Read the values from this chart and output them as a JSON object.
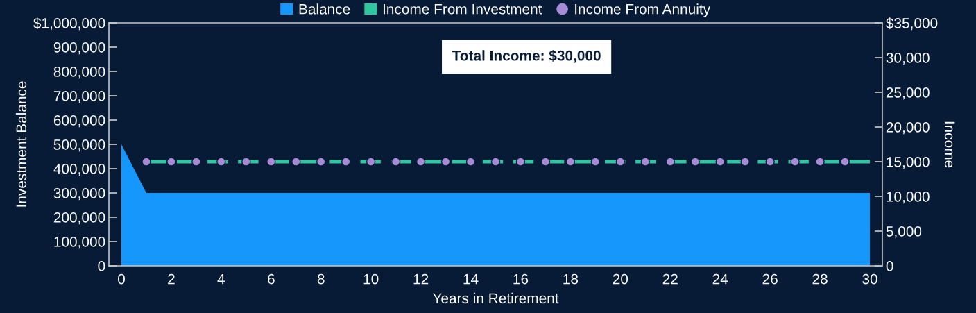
{
  "chart_data": {
    "type": "area",
    "xlabel": "Years in Retirement",
    "ylabel": "Investment Balance",
    "y2label": "Income",
    "annotations": [
      "Total Income: $30,000"
    ],
    "xlim": [
      -0.5,
      30.5
    ],
    "xticks": [
      0,
      2,
      4,
      6,
      8,
      10,
      12,
      14,
      16,
      18,
      20,
      22,
      24,
      26,
      28,
      30
    ],
    "ylim": [
      0,
      1000000
    ],
    "yticks": [
      0,
      {
        "value": 100000,
        "label": "100,000"
      },
      {
        "value": 200000,
        "label": "200,000"
      },
      {
        "value": 300000,
        "label": "300,000"
      },
      {
        "value": 400000,
        "label": "400,000"
      },
      {
        "value": 500000,
        "label": "500,000"
      },
      {
        "value": 600000,
        "label": "600,000"
      },
      {
        "value": 700000,
        "label": "700,000"
      },
      {
        "value": 800000,
        "label": "800,000"
      },
      {
        "value": 900000,
        "label": "900,000"
      },
      {
        "value": 1000000,
        "label": "$1,000,000"
      }
    ],
    "y2lim": [
      0,
      35000
    ],
    "y2ticks": [
      0,
      {
        "value": 5000,
        "label": "5,000"
      },
      {
        "value": 10000,
        "label": "10,000"
      },
      {
        "value": 15000,
        "label": "15,000"
      },
      {
        "value": 20000,
        "label": "20,000"
      },
      {
        "value": 25000,
        "label": "25,000"
      },
      {
        "value": 30000,
        "label": "30,000"
      },
      {
        "value": 35000,
        "label": "$35,000"
      }
    ],
    "grid": false,
    "legend": "top",
    "series": [
      {
        "name": "Balance",
        "color": "#1597fc",
        "x": [
          0,
          1,
          2,
          3,
          4,
          5,
          6,
          7,
          8,
          9,
          10,
          11,
          12,
          13,
          14,
          15,
          16,
          17,
          18,
          19,
          20,
          21,
          22,
          23,
          24,
          25,
          26,
          27,
          28,
          29,
          30
        ],
        "values": [
          500000,
          300000,
          300000,
          300000,
          300000,
          300000,
          300000,
          300000,
          300000,
          300000,
          300000,
          300000,
          300000,
          300000,
          300000,
          300000,
          300000,
          300000,
          300000,
          300000,
          300000,
          300000,
          300000,
          300000,
          300000,
          300000,
          300000,
          300000,
          300000,
          300000,
          300000
        ]
      },
      {
        "name": "Income From Investment",
        "type": "line",
        "axis": "y2",
        "color": "#2ec7a0",
        "line_style": "dashed",
        "marker": "none",
        "x": [
          1,
          2,
          3,
          4,
          5,
          6,
          7,
          8,
          9,
          10,
          11,
          12,
          13,
          14,
          15,
          16,
          17,
          18,
          19,
          20,
          21,
          22,
          23,
          24,
          25,
          26,
          27,
          28,
          29,
          30
        ],
        "values": [
          15000,
          15000,
          15000,
          15000,
          15000,
          15000,
          15000,
          15000,
          15000,
          15000,
          15000,
          15000,
          15000,
          15000,
          15000,
          15000,
          15000,
          15000,
          15000,
          15000,
          15000,
          15000,
          15000,
          15000,
          15000,
          15000,
          15000,
          15000,
          15000,
          15000
        ]
      },
      {
        "name": "Income From Annuity",
        "type": "scatter",
        "axis": "y2",
        "color": "#a78bd6",
        "marker": "circle",
        "x": [
          1,
          2,
          3,
          4,
          5,
          6,
          7,
          8,
          9,
          10,
          11,
          12,
          13,
          14,
          15,
          16,
          17,
          18,
          19,
          20,
          21,
          22,
          23,
          24,
          25,
          26,
          27,
          28,
          29
        ],
        "values": [
          15000,
          15000,
          15000,
          15000,
          15000,
          15000,
          15000,
          15000,
          15000,
          15000,
          15000,
          15000,
          15000,
          15000,
          15000,
          15000,
          15000,
          15000,
          15000,
          15000,
          15000,
          15000,
          15000,
          15000,
          15000,
          15000,
          15000,
          15000,
          15000
        ]
      }
    ]
  }
}
